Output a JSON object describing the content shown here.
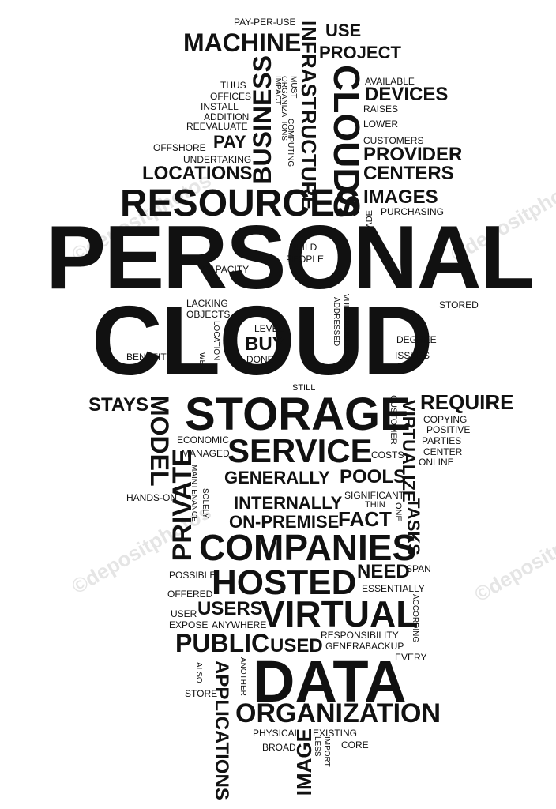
{
  "words": {
    "personal": "PERSONAL",
    "cloud": "CLOUD",
    "storage": "STORAGE",
    "data": "DATA",
    "companies": "COMPANIES",
    "hosted": "HOSTED",
    "virtual": "VIRTUAL",
    "service": "SERVICE",
    "resources": "RESOURCES",
    "organization": "ORGANIZATION",
    "machine": "MACHINE",
    "clouds": "CLOUDS",
    "business": "BUSINESS",
    "infrastructure": "INFRASTRUCTURE",
    "use": "USE",
    "project": "PROJECT",
    "pay_per_use": "PAY-PER-USE",
    "available": "AVAILABLE",
    "devices": "DEVICES",
    "raises": "RAISES",
    "lower": "LOWER",
    "customers": "CUSTOMERS",
    "provider": "PROVIDER",
    "centers": "CENTERS",
    "images": "IMAGES",
    "purchasing": "PURCHASING",
    "made": "MADE",
    "thus": "THUS",
    "offices": "OFFICES",
    "install": "INSTALL",
    "addition": "ADDITION",
    "reevaluate": "REEVALUATE",
    "impact": "IMPACT",
    "organizations": "ORGANIZATIONS",
    "must": "MUST",
    "computing": "COMPUTING",
    "offshore": "OFFSHORE",
    "pay": "PAY",
    "undertaking": "UNDERTAKING",
    "locations": "LOCATIONS",
    "build": "BUILD",
    "people": "PEOPLE",
    "capacity": "CAPACITY",
    "stored": "STORED",
    "lacking": "LACKING",
    "objects": "OBJECTS",
    "level": "LEVEL",
    "buy": "BUY",
    "done": "DONE",
    "location": "LOCATION",
    "web": "WEB",
    "benefit": "BENEFIT",
    "addressed": "ADDRESSED",
    "vulnerabilities": "VULNERABILITIES",
    "degree": "DEGREE",
    "issues": "ISSUES",
    "still": "STILL",
    "stays": "STAYS",
    "model": "MODEL",
    "require": "REQUIRE",
    "customer": "CUSTOMER",
    "virtualize": "VIRTUALIZE",
    "copying": "COPYING",
    "positive": "POSITIVE",
    "parties": "PARTIES",
    "center": "CENTER",
    "online": "ONLINE",
    "economic": "ECONOMIC",
    "managed": "MANAGED",
    "costs": "COSTS",
    "generally": "GENERALLY",
    "pools": "POOLS",
    "private": "PRIVATE",
    "maintenance": "MAINTENANCE",
    "solely": "SOLELY",
    "hands_on": "HANDS-ON",
    "internally": "INTERNALLY",
    "significant": "SIGNIFICANT",
    "thin": "THIN",
    "one": "ONE",
    "tasks": "TASKS",
    "on_premise": "ON-PREMISE",
    "fact": "FACT",
    "possible": "POSSIBLE",
    "span": "SPAN",
    "need": "NEED",
    "offered": "OFFERED",
    "essentially": "ESSENTIALLY",
    "user": "USER",
    "users": "USERS",
    "according": "ACCORDING",
    "expose": "EXPOSE",
    "anywhere": "ANYWHERE",
    "public": "PUBLIC",
    "responsibility": "RESPONSIBILITY",
    "used": "USED",
    "general": "GENERAL",
    "backup": "BACKUP",
    "every": "EVERY",
    "also": "ALSO",
    "another": "ANOTHER",
    "applications": "APPLICATIONS",
    "store": "STORE",
    "physical": "PHYSICAL",
    "existing": "EXISTING",
    "image": "IMAGE",
    "import": "IMPORT",
    "core": "CORE",
    "broad": "BROAD",
    "less": "LESS"
  },
  "colors": {
    "text": "#111111",
    "background": "#ffffff"
  }
}
